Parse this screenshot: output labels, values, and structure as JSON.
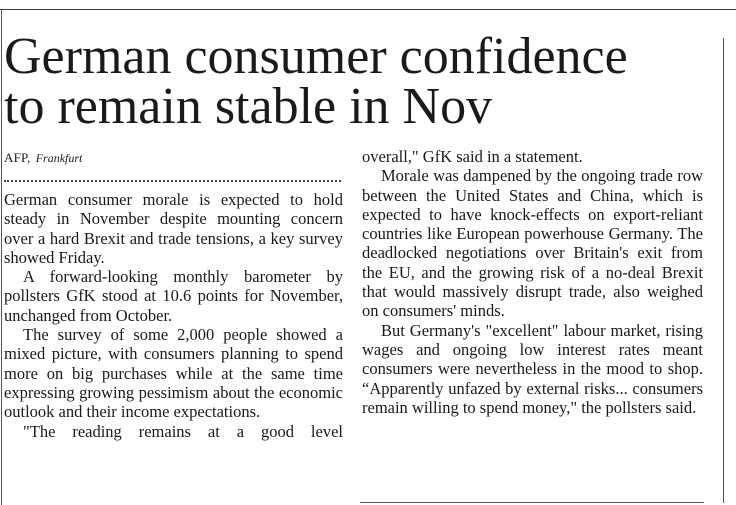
{
  "headline": {
    "line1": "German consumer confidence",
    "line2": "to remain stable in Nov"
  },
  "byline": {
    "agency": "AFP,",
    "place": "Frankfurt"
  },
  "column_left": [
    "German consumer morale is expected to hold steady in November despite mounting concern over a hard Brexit and trade tensions, a key survey showed Friday.",
    "A forward-looking monthly barometer by pollsters GfK stood at 10.6 points for November, unchanged from October.",
    "The survey of some 2,000 people showed a mixed picture, with consumers planning to spend more on big purchases while at the same time expressing growing pessimism about the economic outlook and their income expectations.",
    "\"The reading remains at a good level"
  ],
  "column_right": [
    "overall,\" GfK said in a statement.",
    "Morale was dampened by the ongoing trade row between the United States and China, which is expected to have knock-effects on export-reliant countries like European powerhouse Germany. The deadlocked negotiations over Britain's exit from the EU, and the growing risk of a no-deal Brexit that would massively disrupt trade, also weighed on consumers' minds.",
    "But Germany's \"excellent\" labour market, rising wages and ongoing low interest rates meant consumers were nevertheless in the mood to shop. “Apparently unfazed by external risks... consumers remain willing to spend money,\" the pollsters said."
  ]
}
